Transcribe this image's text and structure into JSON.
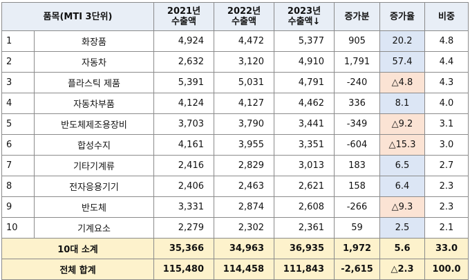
{
  "headers": {
    "item": "품목(MTI 3단위)",
    "y2021_line1": "2021년",
    "y2021_line2": "수출액",
    "y2022_line1": "2022년",
    "y2022_line2": "수출액",
    "y2023_line1": "2023년",
    "y2023_line2": "수출액↓",
    "increase": "증가분",
    "growth": "증가율",
    "share": "비중"
  },
  "rows": [
    {
      "rank": "1",
      "name": "화장품",
      "v2021": "4,924",
      "v2022": "4,472",
      "v2023": "5,377",
      "inc": "905",
      "growth": "20.2",
      "share": "4.8",
      "growth_color": "#dce6f5"
    },
    {
      "rank": "2",
      "name": "자동차",
      "v2021": "2,632",
      "v2022": "3,120",
      "v2023": "4,910",
      "inc": "1,791",
      "growth": "57.4",
      "share": "4.4",
      "growth_color": "#dce6f5"
    },
    {
      "rank": "3",
      "name": "플라스틱 제품",
      "v2021": "5,391",
      "v2022": "5,031",
      "v2023": "4,791",
      "inc": "-240",
      "growth": "△4.8",
      "share": "4.3",
      "growth_color": "#fbe3d4"
    },
    {
      "rank": "4",
      "name": "자동차부품",
      "v2021": "4,124",
      "v2022": "4,127",
      "v2023": "4,462",
      "inc": "336",
      "growth": "8.1",
      "share": "4.0",
      "growth_color": "#dce6f5"
    },
    {
      "rank": "5",
      "name": "반도체제조용장비",
      "v2021": "3,703",
      "v2022": "3,790",
      "v2023": "3,441",
      "inc": "-349",
      "growth": "△9.2",
      "share": "3.1",
      "growth_color": "#fbe3d4"
    },
    {
      "rank": "6",
      "name": "합성수지",
      "v2021": "4,161",
      "v2022": "3,955",
      "v2023": "3,351",
      "inc": "-604",
      "growth": "△15.3",
      "share": "3.0",
      "growth_color": "#fbe3d4"
    },
    {
      "rank": "7",
      "name": "기타기계류",
      "v2021": "2,416",
      "v2022": "2,829",
      "v2023": "3,013",
      "inc": "183",
      "growth": "6.5",
      "share": "2.7",
      "growth_color": "#dce6f5"
    },
    {
      "rank": "8",
      "name": "전자응용기기",
      "v2021": "2,406",
      "v2022": "2,463",
      "v2023": "2,621",
      "inc": "158",
      "growth": "6.4",
      "share": "2.3",
      "growth_color": "#dce6f5"
    },
    {
      "rank": "9",
      "name": "반도체",
      "v2021": "3,331",
      "v2022": "2,874",
      "v2023": "2,608",
      "inc": "-266",
      "growth": "△9.3",
      "share": "2.3",
      "growth_color": "#fbe3d4"
    },
    {
      "rank": "10",
      "name": "기계요소",
      "v2021": "2,279",
      "v2022": "2,302",
      "v2023": "2,361",
      "inc": "59",
      "growth": "2.5",
      "share": "2.1",
      "growth_color": "#dce6f5"
    }
  ],
  "subtotal": {
    "label": "10대 소계",
    "v2021": "35,366",
    "v2022": "34,963",
    "v2023": "36,935",
    "inc": "1,972",
    "growth": "5.6",
    "share": "33.0"
  },
  "total": {
    "label": "전체 합계",
    "v2021": "115,480",
    "v2022": "114,458",
    "v2023": "111,843",
    "inc": "-2,615",
    "growth": "△2.3",
    "share": "100.0"
  },
  "colors": {
    "header_bg": "#e8eef6",
    "positive_growth": "#dce6f5",
    "negative_growth": "#fbe3d4",
    "summary_bg": "#fdf2cc",
    "border": "#8a8a8a"
  }
}
